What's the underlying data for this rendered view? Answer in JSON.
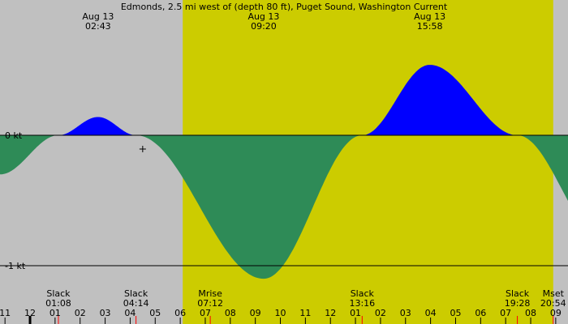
{
  "chart_data": {
    "type": "area",
    "title": "Edmonds, 2.5 mi west of (depth 80 ft), Puget Sound, Washington Current",
    "unit": "kt",
    "x_range_hours": [
      -1.2,
      33.8
    ],
    "ylim": [
      -1.11,
      1.03
    ],
    "y_ticks": [
      {
        "value": 0,
        "label": "0 kt"
      },
      {
        "value": -1,
        "label": "-1 kt"
      }
    ],
    "daylight": {
      "sunrise_hour": 6.1,
      "sunset_hour": 20.9
    },
    "series": [
      {
        "x": [
          -1.2,
          1.133,
          2.717,
          4.233,
          9.333,
          13.267,
          15.967,
          19.467,
          23.0,
          33.8
        ],
        "y": [
          -0.3,
          0.0,
          0.14,
          0.0,
          -1.1,
          0.0,
          0.54,
          0.0,
          -0.82,
          -0.38
        ]
      }
    ],
    "top_labels": [
      {
        "hour": 2.717,
        "date": "Aug 13",
        "time": "02:43"
      },
      {
        "hour": 9.333,
        "date": "Aug 13",
        "time": "09:20"
      },
      {
        "hour": 15.967,
        "date": "Aug 13",
        "time": "15:58"
      }
    ],
    "events": [
      {
        "hour": 1.133,
        "name": "Slack",
        "time": "01:08"
      },
      {
        "hour": 4.233,
        "name": "Slack",
        "time": "04:14"
      },
      {
        "hour": 7.2,
        "name": "Mrise",
        "time": "07:12"
      },
      {
        "hour": 13.267,
        "name": "Slack",
        "time": "13:16"
      },
      {
        "hour": 19.467,
        "name": "Slack",
        "time": "19:28"
      },
      {
        "hour": 20.9,
        "name": "Mset",
        "time": "20:54"
      }
    ],
    "x_tick_labels": [
      "11",
      "12",
      "01",
      "02",
      "03",
      "04",
      "05",
      "06",
      "07",
      "08",
      "09",
      "10",
      "11",
      "12",
      "01",
      "02",
      "03",
      "04",
      "05",
      "06",
      "07",
      "08",
      "09"
    ],
    "x_tick_start_hour": -1,
    "marker_hour": 4.5,
    "colors": {
      "night": "#c0c0c0",
      "day": "#cccc00",
      "flood": "#0000ff",
      "ebb": "#2e8b57",
      "event_tick": "#ff0000",
      "midnight_tick": "#000000"
    }
  }
}
